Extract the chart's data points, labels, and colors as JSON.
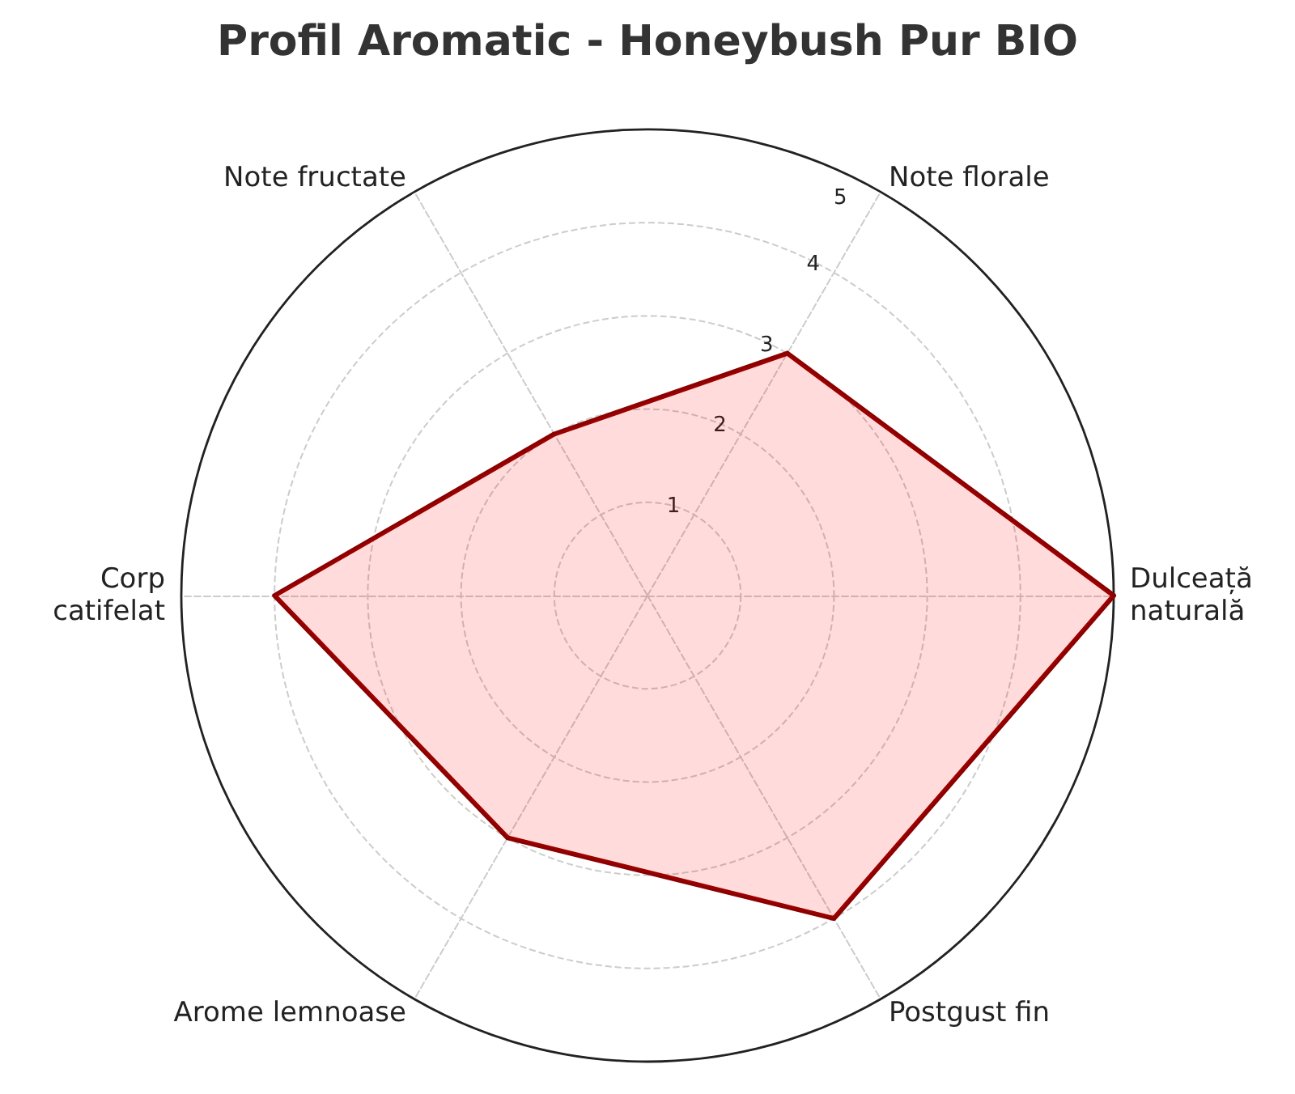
{
  "chart_data": {
    "type": "radar",
    "title": "Profil Aromatic - Honeybush Pur BIO",
    "categories": [
      "Note florale",
      "Dulceață naturală",
      "Postgust fin",
      "Arome lemnoase",
      "Corp catifelat",
      "Note fructate"
    ],
    "series": [
      {
        "color": "#8b0000",
        "values": [
          3,
          5,
          4,
          3,
          4,
          2
        ]
      }
    ],
    "ylim": [
      0,
      5
    ],
    "yticks": [
      1,
      2,
      3,
      4,
      5
    ],
    "grid": true,
    "marker": "none",
    "line_style": "solid"
  }
}
